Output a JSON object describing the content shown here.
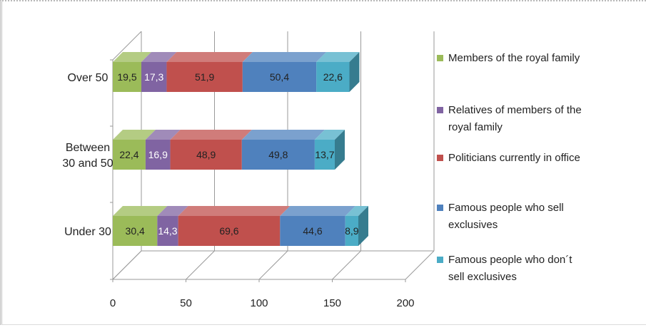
{
  "chart_data": {
    "type": "bar",
    "orientation": "horizontal",
    "stacked": true,
    "three_d": true,
    "categories": [
      "Over 50",
      "Between 30 and 50",
      "Under 30"
    ],
    "category_display": [
      [
        "Over 50"
      ],
      [
        "Between",
        "30 and 50"
      ],
      [
        "Under 30"
      ]
    ],
    "series": [
      {
        "name": "Members of the royal family",
        "color": "#9bbb59",
        "label_color": "#222222",
        "values": [
          19.5,
          22.4,
          30.4
        ],
        "labels": [
          "19,5",
          "22,4",
          "30,4"
        ]
      },
      {
        "name": "Relatives of members of the royal family",
        "color": "#8064a2",
        "label_color": "#ffffff",
        "values": [
          17.3,
          16.9,
          14.3
        ],
        "labels": [
          "17,3",
          "16,9",
          "14,3"
        ]
      },
      {
        "name": "Politicians currently in office",
        "color": "#c0504d",
        "label_color": "#222222",
        "values": [
          51.9,
          48.9,
          69.6
        ],
        "labels": [
          "51,9",
          "48,9",
          "69,6"
        ]
      },
      {
        "name": "Famous people who sell exclusives",
        "color": "#4f81bd",
        "label_color": "#222222",
        "values": [
          50.4,
          49.8,
          44.6
        ],
        "labels": [
          "50,4",
          "49,8",
          "44,6"
        ]
      },
      {
        "name": "Famous people who don´t sell exclusives",
        "color": "#4bacc6",
        "label_color": "#222222",
        "values": [
          22.6,
          13.7,
          8.9
        ],
        "labels": [
          "22,6",
          "13,7",
          "8,9"
        ]
      }
    ],
    "legend_lines": [
      [
        "Members of the royal family"
      ],
      [
        "Relatives of members of the",
        "royal family"
      ],
      [
        "Politicians currently in office"
      ],
      [
        "Famous people who sell",
        "exclusives"
      ],
      [
        "Famous people who don´t",
        "sell exclusives"
      ]
    ],
    "xlim": [
      0,
      200
    ],
    "xticks": [
      0,
      50,
      100,
      150,
      200
    ],
    "xtick_labels": [
      "0",
      "50",
      "100",
      "150",
      "200"
    ],
    "grid": true,
    "legend_position": "right"
  }
}
